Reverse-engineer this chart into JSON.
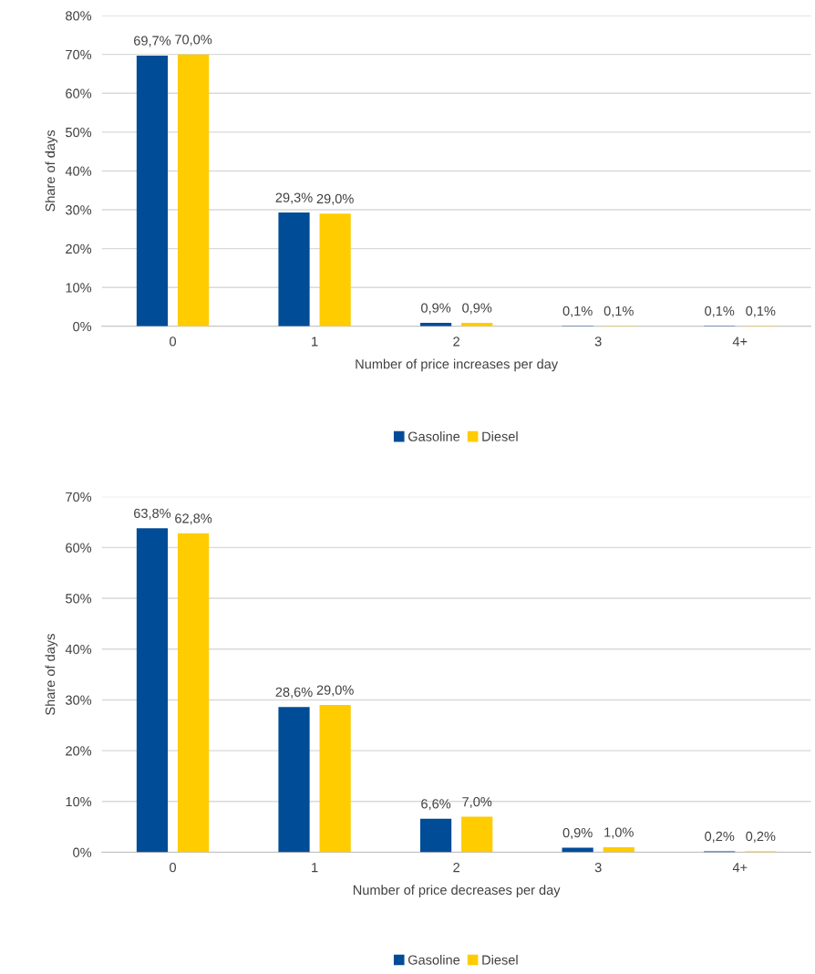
{
  "chart_data": [
    {
      "type": "bar",
      "xlabel": "Number of price increases per day",
      "ylabel": "Share of days",
      "categories": [
        "0",
        "1",
        "2",
        "3",
        "4+"
      ],
      "series": [
        {
          "name": "Gasoline",
          "color": "#004c97",
          "values": [
            69.7,
            29.3,
            0.9,
            0.1,
            0.1
          ],
          "value_labels": [
            "69,7%",
            "29,3%",
            "0,9%",
            "0,1%",
            "0,1%"
          ]
        },
        {
          "name": "Diesel",
          "color": "#ffcc00",
          "values": [
            70.0,
            29.0,
            0.9,
            0.1,
            0.1
          ],
          "value_labels": [
            "70,0%",
            "29,0%",
            "0,9%",
            "0,1%",
            "0,1%"
          ]
        }
      ],
      "ylim": [
        0,
        80
      ],
      "yticks": [
        {
          "value": 0,
          "label": "0%"
        },
        {
          "value": 10,
          "label": "10%"
        },
        {
          "value": 20,
          "label": "20%"
        },
        {
          "value": 30,
          "label": "30%"
        },
        {
          "value": 40,
          "label": "40%"
        },
        {
          "value": 50,
          "label": "50%"
        },
        {
          "value": 60,
          "label": "60%"
        },
        {
          "value": 70,
          "label": "70%"
        },
        {
          "value": 80,
          "label": "80%"
        }
      ],
      "grid": "y",
      "legend": "bottom"
    },
    {
      "type": "bar",
      "xlabel": "Number of price decreases per day",
      "ylabel": "Share of days",
      "categories": [
        "0",
        "1",
        "2",
        "3",
        "4+"
      ],
      "series": [
        {
          "name": "Gasoline",
          "color": "#004c97",
          "values": [
            63.8,
            28.6,
            6.6,
            0.9,
            0.2
          ],
          "value_labels": [
            "63,8%",
            "28,6%",
            "6,6%",
            "0,9%",
            "0,2%"
          ]
        },
        {
          "name": "Diesel",
          "color": "#ffcc00",
          "values": [
            62.8,
            29.0,
            7.0,
            1.0,
            0.2
          ],
          "value_labels": [
            "62,8%",
            "29,0%",
            "7,0%",
            "1,0%",
            "0,2%"
          ]
        }
      ],
      "ylim": [
        0,
        70
      ],
      "yticks": [
        {
          "value": 0,
          "label": "0%"
        },
        {
          "value": 10,
          "label": "10%"
        },
        {
          "value": 20,
          "label": "20%"
        },
        {
          "value": 30,
          "label": "30%"
        },
        {
          "value": 40,
          "label": "40%"
        },
        {
          "value": 50,
          "label": "50%"
        },
        {
          "value": 60,
          "label": "60%"
        },
        {
          "value": 70,
          "label": "70%"
        }
      ],
      "grid": "y",
      "legend": "bottom"
    }
  ]
}
